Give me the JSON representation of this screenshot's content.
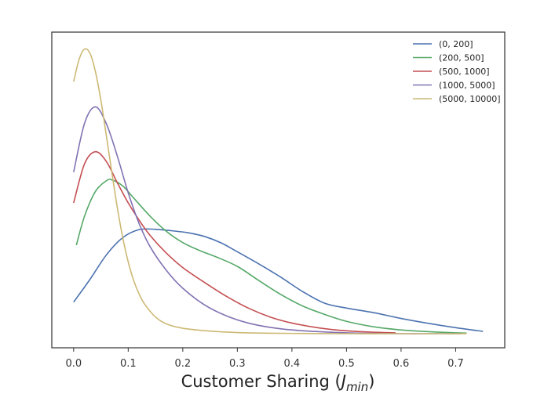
{
  "chart_data": {
    "type": "line",
    "xlabel_main": "Customer Sharing (",
    "xlabel_var": "J",
    "xlabel_sub": "min",
    "xlabel_close": ")",
    "xlim": [
      -0.04,
      0.79
    ],
    "xticks": [
      0.0,
      0.1,
      0.2,
      0.3,
      0.4,
      0.5,
      0.6,
      0.7
    ],
    "xtick_labels": [
      "0.0",
      "0.1",
      "0.2",
      "0.3",
      "0.4",
      "0.5",
      "0.6",
      "0.7"
    ],
    "ylim": [
      0.0,
      1.0
    ],
    "yticks_shown": false,
    "grid": false,
    "legend_position": "top-right",
    "series": [
      {
        "name": "(0, 200]",
        "color": "#4c72b0",
        "x": [
          0.0,
          0.03,
          0.06,
          0.09,
          0.12,
          0.15,
          0.18,
          0.21,
          0.24,
          0.27,
          0.3,
          0.34,
          0.38,
          0.42,
          0.46,
          0.5,
          0.55,
          0.6,
          0.65,
          0.7,
          0.75
        ],
        "y": [
          0.11,
          0.189,
          0.274,
          0.334,
          0.362,
          0.363,
          0.358,
          0.351,
          0.338,
          0.316,
          0.285,
          0.242,
          0.196,
          0.146,
          0.106,
          0.089,
          0.073,
          0.053,
          0.036,
          0.021,
          0.008
        ]
      },
      {
        "name": "(200, 500]",
        "color": "#55a868",
        "x": [
          0.005,
          0.02,
          0.04,
          0.06,
          0.07,
          0.09,
          0.11,
          0.14,
          0.17,
          0.2,
          0.23,
          0.26,
          0.3,
          0.34,
          0.38,
          0.42,
          0.46,
          0.5,
          0.55,
          0.6,
          0.65,
          0.7,
          0.72
        ],
        "y": [
          0.308,
          0.409,
          0.495,
          0.532,
          0.535,
          0.514,
          0.472,
          0.409,
          0.356,
          0.317,
          0.29,
          0.268,
          0.234,
          0.184,
          0.136,
          0.096,
          0.067,
          0.043,
          0.024,
          0.013,
          0.007,
          0.003,
          0.002
        ]
      },
      {
        "name": "(500, 1000]",
        "color": "#c44e52",
        "x": [
          0.0,
          0.02,
          0.04,
          0.06,
          0.08,
          0.1,
          0.12,
          0.14,
          0.17,
          0.2,
          0.24,
          0.28,
          0.32,
          0.36,
          0.4,
          0.45,
          0.5,
          0.55,
          0.59
        ],
        "y": [
          0.455,
          0.591,
          0.633,
          0.599,
          0.525,
          0.455,
          0.395,
          0.342,
          0.28,
          0.23,
          0.178,
          0.13,
          0.089,
          0.058,
          0.037,
          0.02,
          0.01,
          0.005,
          0.003
        ]
      },
      {
        "name": "(1000, 5000]",
        "color": "#8172b2",
        "x": [
          0.0,
          0.02,
          0.04,
          0.06,
          0.08,
          0.1,
          0.12,
          0.14,
          0.17,
          0.2,
          0.24,
          0.28,
          0.32,
          0.36,
          0.4,
          0.45,
          0.5,
          0.55,
          0.6,
          0.65,
          0.7,
          0.71
        ],
        "y": [
          0.562,
          0.732,
          0.789,
          0.73,
          0.618,
          0.49,
          0.383,
          0.303,
          0.22,
          0.158,
          0.1,
          0.062,
          0.037,
          0.022,
          0.013,
          0.007,
          0.003,
          0.001,
          0.0,
          0.0,
          0.0,
          0.0
        ]
      },
      {
        "name": "(5000, 10000]",
        "color": "#ccb974",
        "x": [
          0.0,
          0.01,
          0.02,
          0.03,
          0.04,
          0.05,
          0.06,
          0.07,
          0.08,
          0.09,
          0.1,
          0.11,
          0.12,
          0.13,
          0.15,
          0.17,
          0.2,
          0.25,
          0.3,
          0.35,
          0.4,
          0.5,
          0.6,
          0.72
        ],
        "y": [
          0.877,
          0.954,
          0.99,
          0.975,
          0.911,
          0.811,
          0.688,
          0.561,
          0.439,
          0.334,
          0.25,
          0.185,
          0.138,
          0.103,
          0.058,
          0.034,
          0.019,
          0.009,
          0.004,
          0.002,
          0.001,
          0.0,
          0.0,
          0.0
        ]
      }
    ]
  }
}
